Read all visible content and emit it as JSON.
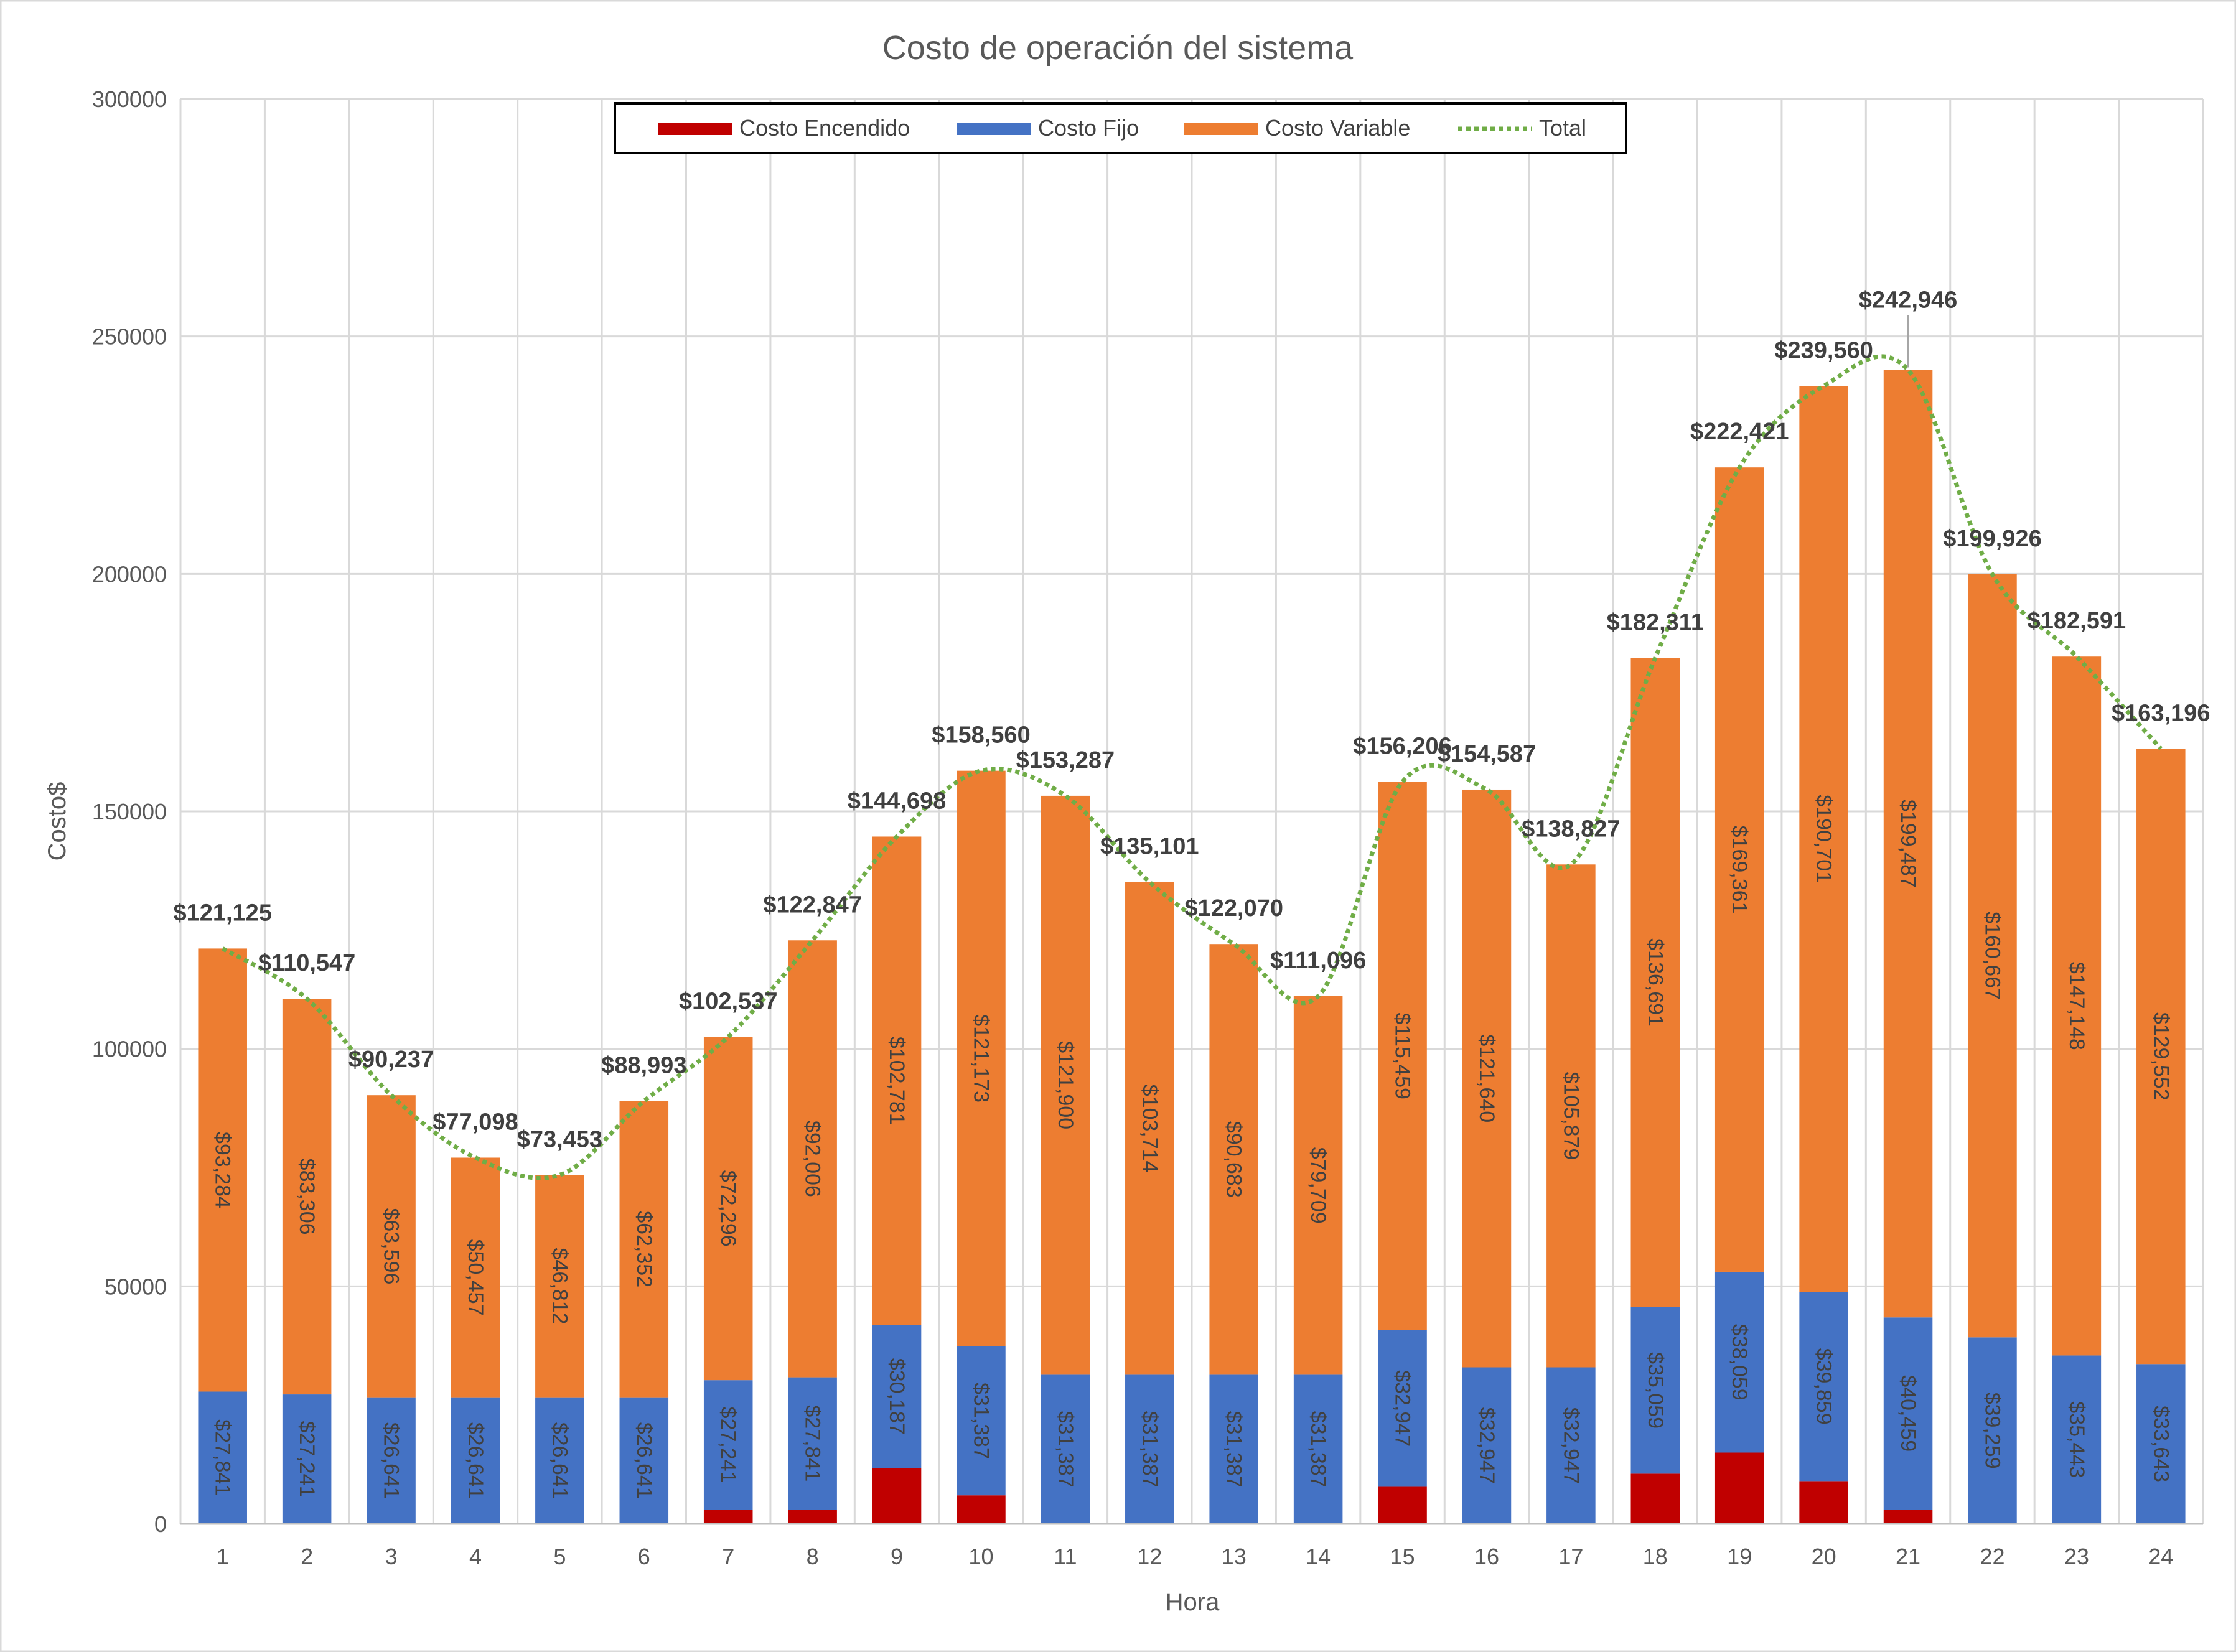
{
  "chart_data": {
    "type": "bar",
    "stacked": true,
    "title": "Costo de operación del sistema",
    "xlabel": "Hora",
    "ylabel": "Costo$",
    "ylim": [
      0,
      300000
    ],
    "yticks": [
      "0",
      "50000",
      "100000",
      "150000",
      "200000",
      "250000",
      "300000"
    ],
    "grid": true,
    "legend_position": "top",
    "categories": [
      "1",
      "2",
      "3",
      "4",
      "5",
      "6",
      "7",
      "8",
      "9",
      "10",
      "11",
      "12",
      "13",
      "14",
      "15",
      "16",
      "17",
      "18",
      "19",
      "20",
      "21",
      "22",
      "23",
      "24"
    ],
    "series": [
      {
        "name": "Costo Encendido",
        "color": "#c00000",
        "values": [
          0,
          0,
          0,
          0,
          0,
          0,
          3000,
          3000,
          11730,
          6000,
          0,
          0,
          0,
          0,
          7800,
          0,
          0,
          10561,
          15001,
          9000,
          3000,
          0,
          0,
          0
        ]
      },
      {
        "name": "Costo Fijo",
        "color": "#4472c4",
        "values": [
          27841,
          27241,
          26641,
          26641,
          26641,
          26641,
          27241,
          27841,
          30187,
          31387,
          31387,
          31387,
          31387,
          31387,
          32947,
          32947,
          32947,
          35059,
          38059,
          39859,
          40459,
          39259,
          35443,
          33643
        ],
        "labels": [
          "$27,841",
          "$27,241",
          "$26,641",
          "$26,641",
          "$26,641",
          "$26,641",
          "$27,241",
          "$27,841",
          "$30,187",
          "$31,387",
          "$31,387",
          "$31,387",
          "$31,387",
          "$31,387",
          "$32,947",
          "$32,947",
          "$32,947",
          "$35,059",
          "$38,059",
          "$39,859",
          "$40,459",
          "$39,259",
          "$35,443",
          "$33,643"
        ]
      },
      {
        "name": "Costo Variable",
        "color": "#ed7d31",
        "values": [
          93284,
          83306,
          63596,
          50457,
          46812,
          62352,
          72296,
          92006,
          102781,
          121173,
          121900,
          103714,
          90683,
          79709,
          115459,
          121640,
          105879,
          136691,
          169361,
          190701,
          199487,
          160667,
          147148,
          129552
        ],
        "labels": [
          "$93,284",
          "$83,306",
          "$63,596",
          "$50,457",
          "$46,812",
          "$62,352",
          "$72,296",
          "$92,006",
          "$102,781",
          "$121,173",
          "$121,900",
          "$103,714",
          "$90,683",
          "$79,709",
          "$115,459",
          "$121,640",
          "$105,879",
          "$136,691",
          "$169,361",
          "$190,701",
          "$199,487",
          "$160,667",
          "$147,148",
          "$129,552"
        ]
      },
      {
        "name": "Total",
        "type": "line",
        "style": "dotted",
        "color": "#70ad47",
        "values": [
          121125,
          110547,
          90237,
          77098,
          73453,
          88993,
          102537,
          122847,
          144698,
          158560,
          153287,
          135101,
          122070,
          111096,
          156206,
          154587,
          138827,
          182311,
          222421,
          239560,
          242946,
          199926,
          182591,
          163196
        ],
        "labels": [
          "$121,125",
          "$110,547",
          "$90,237",
          "$77,098",
          "$73,453",
          "$88,993",
          "$102,537",
          "$122,847",
          "$144,698",
          "$158,560",
          "$153,287",
          "$135,101",
          "$122,070",
          "$111,096",
          "$156,206",
          "$154,587",
          "$138,827",
          "$182,311",
          "$222,421",
          "$239,560",
          "$242,946",
          "$199,926",
          "$182,591",
          "$163,196"
        ]
      }
    ]
  }
}
